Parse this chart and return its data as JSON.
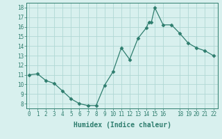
{
  "x": [
    0,
    1,
    2,
    3,
    4,
    5,
    6,
    7,
    8,
    9,
    10,
    11,
    12,
    13,
    14,
    14.3,
    14.6,
    15,
    16,
    17,
    18,
    19,
    20,
    21,
    22
  ],
  "y": [
    11.0,
    11.1,
    10.4,
    10.1,
    9.3,
    8.5,
    8.0,
    7.8,
    7.8,
    9.9,
    11.3,
    13.8,
    12.6,
    14.8,
    15.9,
    16.5,
    16.5,
    18.0,
    16.2,
    16.2,
    15.3,
    14.3,
    13.8,
    13.5,
    13.0
  ],
  "line_color": "#2e7d6e",
  "marker": "D",
  "marker_size": 2.5,
  "bg_color": "#d8f0ee",
  "grid_color": "#b0d8d4",
  "tick_color": "#2e7d6e",
  "xlabel": "Humidex (Indice chaleur)",
  "xlim": [
    -0.3,
    22.5
  ],
  "ylim": [
    7.5,
    18.5
  ],
  "yticks": [
    8,
    9,
    10,
    11,
    12,
    13,
    14,
    15,
    16,
    17,
    18
  ],
  "xticks": [
    0,
    1,
    2,
    3,
    4,
    5,
    6,
    7,
    8,
    9,
    10,
    11,
    12,
    13,
    14,
    15,
    16,
    18,
    19,
    20,
    21,
    22
  ],
  "xtick_labels": [
    "0",
    "1",
    "2",
    "3",
    "4",
    "5",
    "6",
    "7",
    "8",
    "9",
    "10",
    "11",
    "12",
    "13",
    "14",
    "15",
    "16",
    "18",
    "19",
    "20",
    "21",
    "22"
  ]
}
